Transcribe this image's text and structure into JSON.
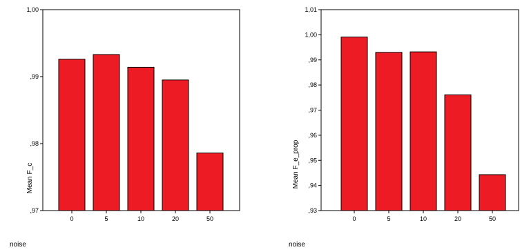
{
  "chart_data": [
    {
      "type": "bar",
      "categories": [
        "0",
        "5",
        "10",
        "20",
        "50"
      ],
      "values": [
        0.9926,
        0.9933,
        0.9914,
        0.9895,
        0.9786
      ],
      "title": "",
      "xlabel": "noise",
      "ylabel": "Mean F_c",
      "ylim": [
        0.97,
        1.0
      ],
      "yticks": [
        {
          "value": 0.97,
          "label": ",97"
        },
        {
          "value": 0.98,
          "label": ",98"
        },
        {
          "value": 0.99,
          "label": ",99"
        },
        {
          "value": 1.0,
          "label": "1,00"
        }
      ],
      "bar_color": "#ED1C24",
      "grid": false
    },
    {
      "type": "bar",
      "categories": [
        "0",
        "5",
        "10",
        "20",
        "50"
      ],
      "values": [
        0.9991,
        0.993,
        0.9932,
        0.9761,
        0.9443
      ],
      "title": "",
      "xlabel": "noise",
      "ylabel": "Mean F_e_prop",
      "ylim": [
        0.93,
        1.01
      ],
      "yticks": [
        {
          "value": 0.93,
          "label": ",93"
        },
        {
          "value": 0.94,
          "label": ",94"
        },
        {
          "value": 0.95,
          "label": ",95"
        },
        {
          "value": 0.96,
          "label": ",96"
        },
        {
          "value": 0.97,
          "label": ",97"
        },
        {
          "value": 0.98,
          "label": ",98"
        },
        {
          "value": 0.99,
          "label": ",99"
        },
        {
          "value": 1.0,
          "label": "1,00"
        },
        {
          "value": 1.01,
          "label": "1,01"
        }
      ],
      "bar_color": "#ED1C24",
      "grid": false
    }
  ]
}
